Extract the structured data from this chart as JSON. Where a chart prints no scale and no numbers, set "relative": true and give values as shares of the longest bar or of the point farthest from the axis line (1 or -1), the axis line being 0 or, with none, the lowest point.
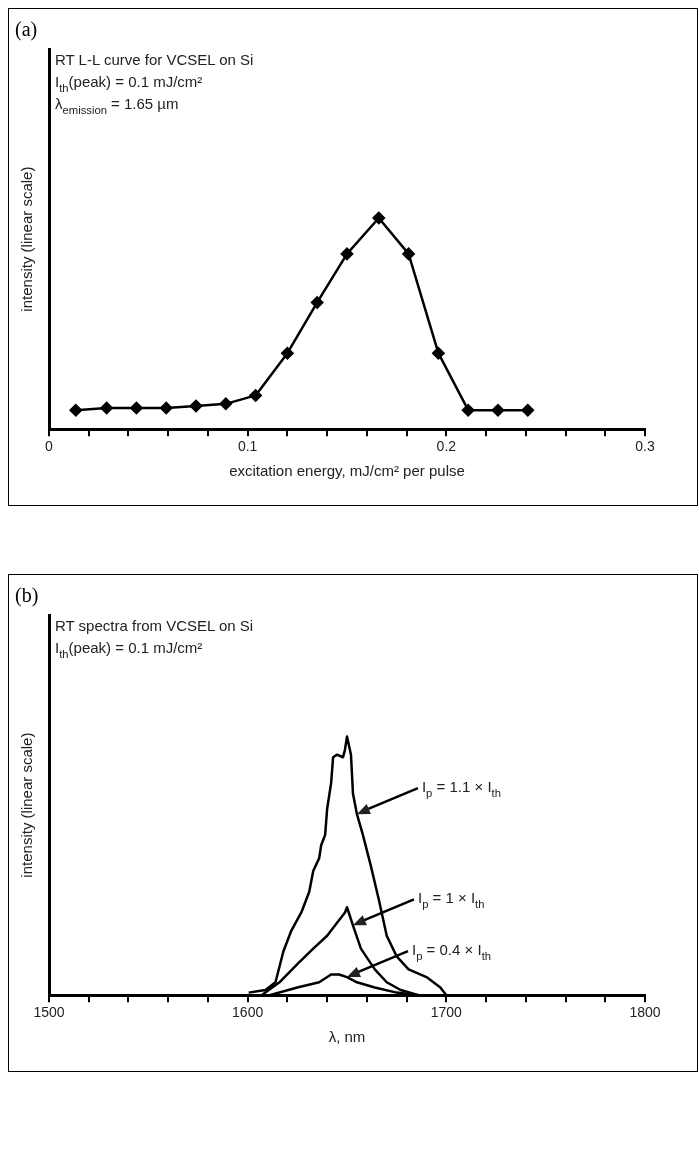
{
  "chart_data": [
    {
      "type": "line",
      "title": "(a)",
      "xlabel": "excitation energy, mJ/cm² per pulse",
      "ylabel": "intensity (linear scale)",
      "relative": true,
      "marker": "diamond",
      "line_style": "solid",
      "grid": false,
      "legend": false,
      "annotations": [
        "RT L-L curve for VCSEL on Si",
        "I$_{th}$(peak) = 0.1 mJ/cm²",
        "λ$_{emission}$ = 1.65 µm"
      ],
      "xlim": [
        0,
        0.3
      ],
      "xticks": [
        0,
        {
          "value": 0.02,
          "label": null
        },
        {
          "value": 0.04,
          "label": null
        },
        {
          "value": 0.06,
          "label": null
        },
        {
          "value": 0.08,
          "label": null
        },
        0.1,
        {
          "value": 0.12,
          "label": null
        },
        {
          "value": 0.14,
          "label": null
        },
        {
          "value": 0.16,
          "label": null
        },
        {
          "value": 0.18,
          "label": null
        },
        0.2,
        {
          "value": 0.22,
          "label": null
        },
        {
          "value": 0.24,
          "label": null
        },
        {
          "value": 0.26,
          "label": null
        },
        {
          "value": 0.28,
          "label": null
        },
        0.3
      ],
      "series": [
        {
          "color": "#000000",
          "x": [
            0.0135,
            0.029,
            0.044,
            0.059,
            0.074,
            0.089,
            0.104,
            0.12,
            0.135,
            0.15,
            0.166,
            0.181,
            0.196,
            0.211,
            0.226,
            0.241
          ],
          "values": [
            0.09,
            0.1,
            0.1,
            0.1,
            0.11,
            0.12,
            0.16,
            0.36,
            0.6,
            0.83,
            1,
            0.83,
            0.36,
            0.09,
            0.09,
            0.09
          ]
        }
      ]
    },
    {
      "type": "line",
      "title": "(b)",
      "xlabel": "λ, nm",
      "ylabel": "intensity (linear scale)",
      "relative": true,
      "marker": "none",
      "line_style": "solid",
      "grid": false,
      "legend": false,
      "annotations": [
        "RT spectra from VCSEL on Si",
        "I$_{th}$(peak) = 0.1 mJ/cm²",
        {
          "text": "I$_{p}$ = 1.1 × I$_{th}$",
          "x": 1655,
          "y": 0.7
        },
        {
          "text": "I$_{p}$ = 1 × I$_{th}$",
          "x": 1653,
          "y": 0.27
        },
        {
          "text": "I$_{p}$ = 0.4 × I$_{th}$",
          "x": 1650,
          "y": 0.07
        }
      ],
      "xlim": [
        1500,
        1800
      ],
      "xticks": [
        1500,
        {
          "value": 1520,
          "label": null
        },
        {
          "value": 1540,
          "label": null
        },
        {
          "value": 1560,
          "label": null
        },
        {
          "value": 1580,
          "label": null
        },
        1600,
        {
          "value": 1620,
          "label": null
        },
        {
          "value": 1640,
          "label": null
        },
        {
          "value": 1660,
          "label": null
        },
        {
          "value": 1680,
          "label": null
        },
        1700,
        {
          "value": 1720,
          "label": null
        },
        {
          "value": 1740,
          "label": null
        },
        {
          "value": 1760,
          "label": null
        },
        {
          "value": 1780,
          "label": null
        },
        1800
      ],
      "series": [
        {
          "color": "#000000",
          "x": [
            1600.5,
            1609,
            1614,
            1618,
            1622,
            1627,
            1631,
            1633,
            1636,
            1637,
            1639,
            1640,
            1642,
            1643,
            1645,
            1648,
            1649,
            1650,
            1652,
            1653,
            1655,
            1658,
            1662,
            1666,
            1670,
            1675,
            1681,
            1690,
            1697,
            1700
          ],
          "values": [
            0.01,
            0.02,
            0.05,
            0.17,
            0.25,
            0.32,
            0.4,
            0.48,
            0.53,
            0.58,
            0.62,
            0.72,
            0.82,
            0.92,
            0.93,
            0.92,
            0.95,
            1,
            0.93,
            0.78,
            0.7,
            0.62,
            0.5,
            0.37,
            0.23,
            0.15,
            0.1,
            0.07,
            0.03,
            0
          ]
        },
        {
          "color": "#000000",
          "x": [
            1607,
            1616,
            1625,
            1633,
            1640,
            1645,
            1649,
            1650,
            1653,
            1657,
            1664,
            1670,
            1677,
            1686
          ],
          "values": [
            0,
            0.05,
            0.12,
            0.18,
            0.23,
            0.28,
            0.32,
            0.34,
            0.27,
            0.18,
            0.1,
            0.05,
            0.02,
            0
          ]
        },
        {
          "color": "#000000",
          "x": [
            1611,
            1625,
            1636,
            1642,
            1646,
            1650,
            1655,
            1664,
            1675,
            1686
          ],
          "values": [
            0,
            0.03,
            0.05,
            0.08,
            0.08,
            0.07,
            0.05,
            0.03,
            0.01,
            0
          ]
        }
      ]
    }
  ]
}
